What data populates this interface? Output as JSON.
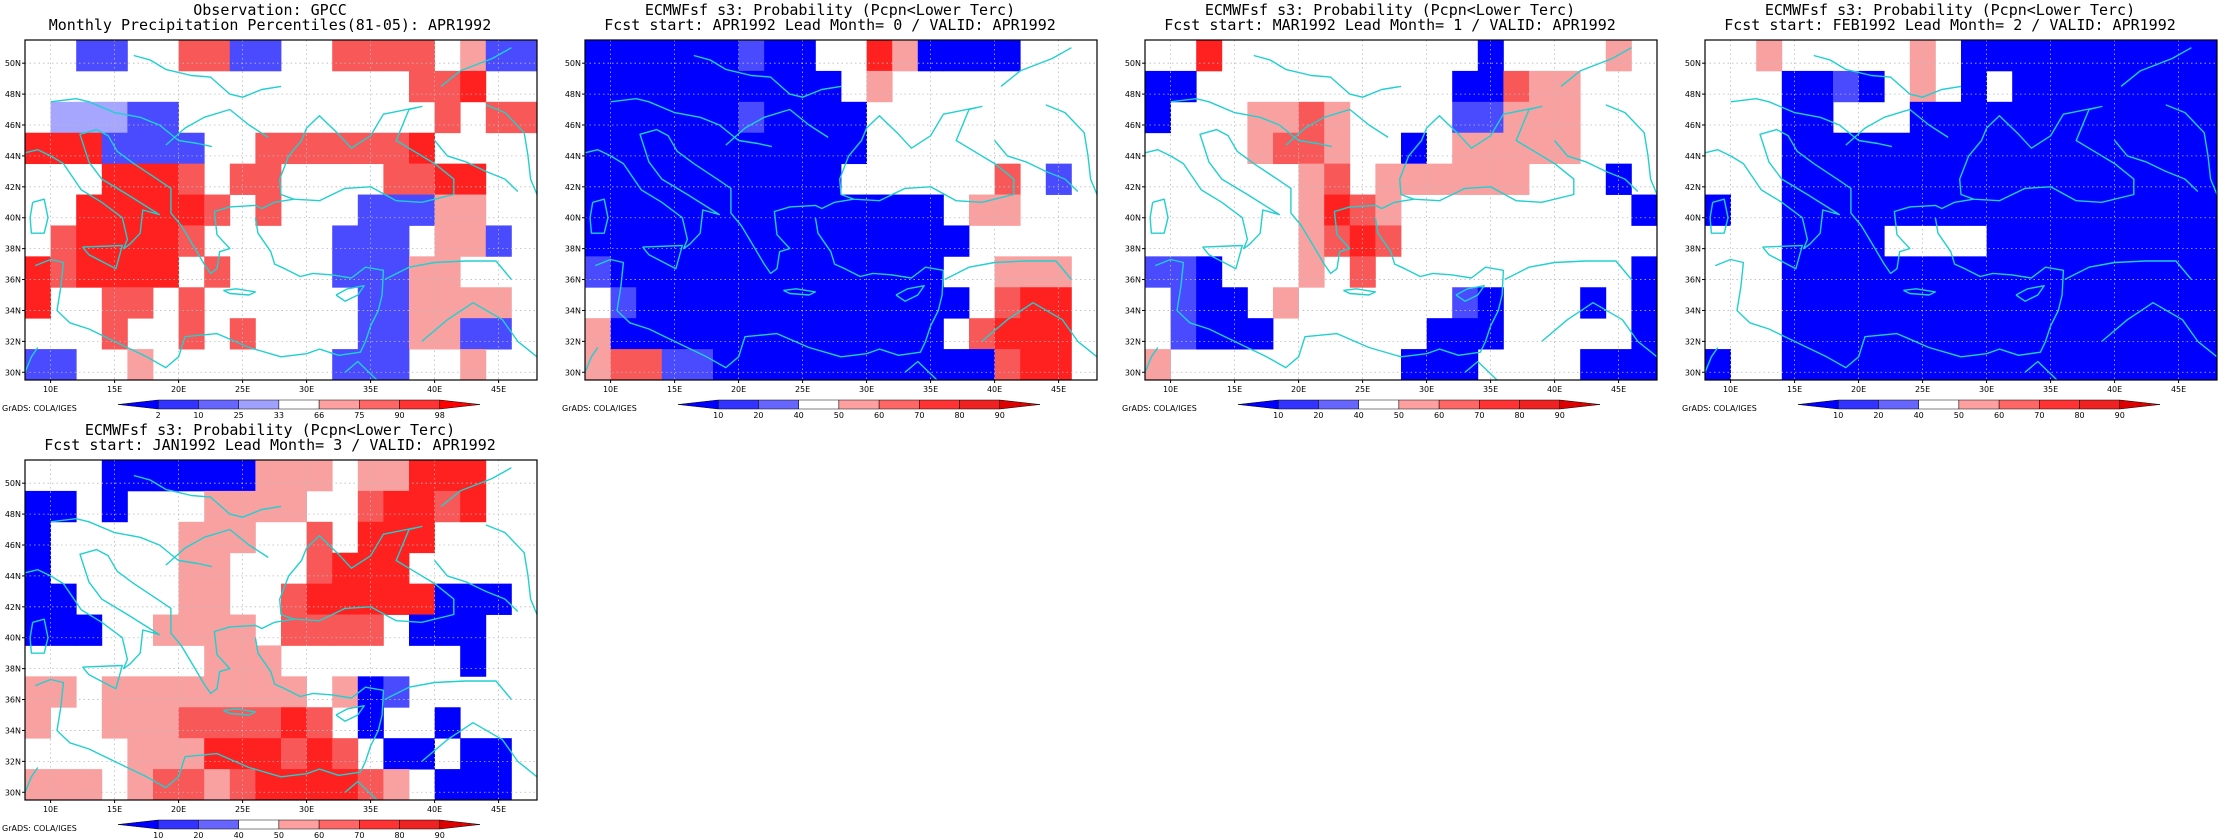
{
  "footer_label": "GrADS: COLA/IGES",
  "map_axes": {
    "lon_ticks": [
      "10E",
      "15E",
      "20E",
      "25E",
      "30E",
      "35E",
      "40E",
      "45E"
    ],
    "lat_ticks": [
      "30N",
      "32N",
      "34N",
      "36N",
      "38N",
      "40N",
      "42N",
      "44N",
      "46N",
      "48N",
      "50N"
    ]
  },
  "legends": {
    "percentile": {
      "labels": [
        "2",
        "10",
        "25",
        "33",
        "66",
        "75",
        "90",
        "98"
      ],
      "colors": [
        "#0000ff",
        "#3333ff",
        "#6666ff",
        "#a0a0ff",
        "#ffffff",
        "#ffa0a0",
        "#ff6666",
        "#ff3333",
        "#ff0000"
      ]
    },
    "probability": {
      "labels": [
        "10",
        "20",
        "40",
        "50",
        "60",
        "70",
        "80",
        "90"
      ],
      "colors": [
        "#0000ff",
        "#3333ff",
        "#6666ff",
        "#ffffff",
        "#ffa0a0",
        "#ff6666",
        "#ff3333",
        "#ee2222",
        "#dd0000"
      ]
    }
  },
  "colors": {
    "coastline": "#20d0d0",
    "grid_dots": "#bbbbbb",
    "blue_strong": "#0000ff",
    "blue_medium": "#4a4aff",
    "blue_light": "#a6a6ff",
    "red_strong": "#ff2020",
    "red_medium": "#f85858",
    "red_light": "#f9a0a0"
  },
  "panels": [
    {
      "title_line1": "Observation: GPCC",
      "title_line2": "Monthly Precipitation Percentiles(81-05): APR1992",
      "legend": "percentile",
      "grid": [
        "..bb..rrbb..rrrr.lbb",
        "...............rrR",
        ".pppbb..........r.rr",
        "RRRbbbb..rrrrrrR...",
        "...RRRr.rr....rrRR",
        "..RRRRRr.r...bbbll",
        ".rRRRRr.....bbb.llb",
        "RrRRRR.r....bbbll..",
        "R..rr.r......bbllll",
        "...r..r.r....bbllbb",
        "bb..l.......bbb..l.."
      ]
    },
    {
      "title_line1": "ECMWFsf s3: Probability (Pcpn<Lower Terc)",
      "title_line2": "Fcst start: APR1992  Lead Month= 0 / VALID: APR1992",
      "legend": "probability",
      "grid": [
        "BBBBBBbBB..RlBBBB...",
        "BBBBBBBBBB.l.......",
        "BBBBBBbBBBB..........",
        "BBBBBBBBBBB.........",
        "BBBBBBBBBB......r.b",
        "BBBBBBBBBBBBBB.ll...",
        "BBBBBBBBBBBBBBB.....",
        "bBBBBBBBBBBBBB..lll",
        ".bBBBBBBBBBBBBB.rRR",
        "lBBBBBBBBBBBBB.rRRR",
        "lrrbbBBBBBBBBBBBrRR"
      ]
    },
    {
      "title_line1": "ECMWFsf s3: Probability (Pcpn<Lower Terc)",
      "title_line2": "Fcst start: MAR1992  Lead Month= 1 / VALID: APR1992",
      "legend": "probability",
      "grid": [
        "..R..........B....l",
        "BB..........BBrll..",
        "B...llrl....bblll..",
        "....lrrl..B.lllll..",
        "......lr.llllll...B",
        "......lRrl.........B",
        "......lrRr..........",
        "bbB...l.r..........B",
        ".bBB.l......bB...B.B",
        ".bBBB......BBB.....B",
        "l.........BBB....BBB"
      ]
    },
    {
      "title_line1": "ECMWFsf s3: Probability (Pcpn<Lower Terc)",
      "title_line2": "Fcst start: FEB1992  Lead Month= 2 / VALID: APR1992",
      "legend": "probability",
      "grid": [
        "..l.....l.BBBBBBBBBB",
        "...BBbB.l.B.BBBBBBBB",
        "...BB...BBBBBBBBBBBBB",
        "...BBBBBBBBBBBBBBBBBB",
        "...BBBBBBBBBBBBBBBBBB",
        "B..BBBBBBBBBBBBBBBBB",
        "...BBBB....BBBBBBBBB",
        "...BBBBBBBBBBBBBBBBB",
        "...BBBBBBBBBBBBBBBBB",
        "...BBBBBBBBBBBBBBBBB",
        "B..BBBBBBBBBBBBBBBBB"
      ]
    },
    {
      "title_line1": "ECMWFsf s3: Probability (Pcpn<Lower Terc)",
      "title_line2": "Fcst start: JAN1992  Lead Month= 3 / VALID: APR1992",
      "legend": "probability",
      "grid": [
        "...BBBBBBlll.llRRR",
        "BB.B...llll..rRRrR",
        "B.....lll..r.RRR..",
        "B.....ll...rRRR...",
        "BB....ll..rRRRRRBBB",
        "BBB..llll.rrrr.BBB",
        ".......lll.......B",
        "ll.llllllll.lBb...",
        "l..lllrrrrRr.B..B",
        "....lllRRRrRr.BB.BB",
        "lll.lrrlrRRRRrl.BBB"
      ]
    }
  ]
}
